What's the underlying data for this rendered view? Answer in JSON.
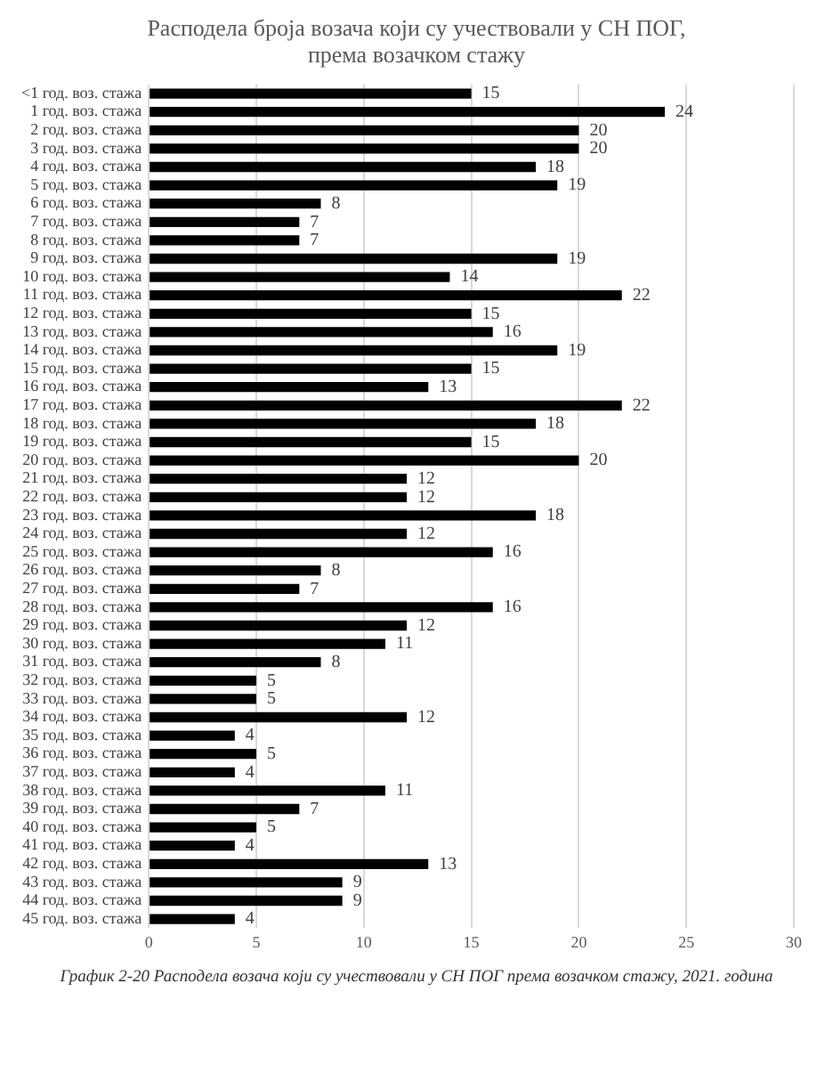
{
  "chart_data": {
    "type": "bar",
    "orientation": "horizontal",
    "title": "Расподела броја возача који су учествовали у СН ПОГ, према возачком стажу",
    "categories": [
      "<1 год. воз. стажа",
      "1 год. воз. стажа",
      "2 год. воз. стажа",
      "3 год. воз. стажа",
      "4 год. воз. стажа",
      "5 год. воз. стажа",
      "6 год. воз. стажа",
      "7 год. воз. стажа",
      "8 год. воз. стажа",
      "9 год. воз. стажа",
      "10 год. воз. стажа",
      "11 год. воз. стажа",
      "12 год. воз. стажа",
      "13 год. воз. стажа",
      "14 год. воз. стажа",
      "15 год. воз. стажа",
      "16 год. воз. стажа",
      "17 год. воз. стажа",
      "18 год. воз. стажа",
      "19 год. воз. стажа",
      "20 год. воз. стажа",
      "21 год. воз. стажа",
      "22 год. воз. стажа",
      "23 год. воз. стажа",
      "24 год. воз. стажа",
      "25 год. воз. стажа",
      "26 год. воз. стажа",
      "27 год. воз. стажа",
      "28 год. воз. стажа",
      "29 год. воз. стажа",
      "30 год. воз. стажа",
      "31 год. воз. стажа",
      "32 год. воз. стажа",
      "33 год. воз. стажа",
      "34 год. воз. стажа",
      "35 год. воз. стажа",
      "36 год. воз. стажа",
      "37 год. воз. стажа",
      "38 год. воз. стажа",
      "39 год. воз. стажа",
      "40 год. воз. стажа",
      "41 год. воз. стажа",
      "42 год. воз. стажа",
      "43 год. воз. стажа",
      "44 год. воз. стажа",
      "45 год. воз. стажа"
    ],
    "values": [
      15,
      24,
      20,
      20,
      18,
      19,
      8,
      7,
      7,
      19,
      14,
      22,
      15,
      16,
      19,
      15,
      13,
      22,
      18,
      15,
      20,
      12,
      12,
      18,
      12,
      16,
      8,
      7,
      16,
      12,
      11,
      8,
      5,
      5,
      12,
      4,
      5,
      4,
      11,
      7,
      5,
      4,
      13,
      9,
      9,
      4
    ],
    "color": "#000000",
    "xlim": [
      0,
      30
    ],
    "xticks": [
      0,
      5,
      10,
      15,
      20,
      25,
      30
    ],
    "grid": "x",
    "data_labels": true,
    "annotations": [
      "График 2-20 Расподела возача који су учествовали у СН ПОГ према возачком стажу, 2021. година"
    ]
  }
}
